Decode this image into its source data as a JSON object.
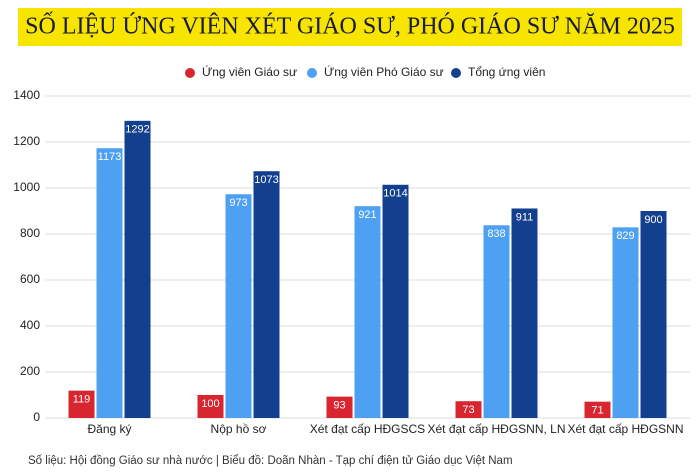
{
  "chart_data": {
    "type": "bar",
    "title": "SỐ LIỆU ỨNG VIÊN XÉT GIÁO SƯ, PHÓ GIÁO SƯ NĂM 2025",
    "source": "Số liệu: Hội đồng Giáo sư nhà nước  |  Biểu đồ: Doãn Nhàn - Tạp chí điện tử Giáo dục Việt Nam",
    "categories": [
      "Đăng ký",
      "Nộp hồ sơ",
      "Xét đạt cấp HĐGSCS",
      "Xét đạt cấp HĐGSNN, LN",
      "Xét đạt cấp HĐGSNN"
    ],
    "series": [
      {
        "name": "Ứng viên Giáo sư",
        "color": "#d7262f",
        "values": [
          119,
          100,
          93,
          73,
          71
        ]
      },
      {
        "name": "Ứng viên Phó Giáo sư",
        "color": "#4da0f2",
        "values": [
          1173,
          973,
          921,
          838,
          829
        ]
      },
      {
        "name": "Tổng ứng viên",
        "color": "#133f8f",
        "values": [
          1292,
          1073,
          1014,
          911,
          900
        ]
      }
    ],
    "ylim": [
      0,
      1400
    ],
    "yticks": [
      0,
      200,
      400,
      600,
      800,
      1000,
      1200,
      1400
    ],
    "grid": true
  }
}
